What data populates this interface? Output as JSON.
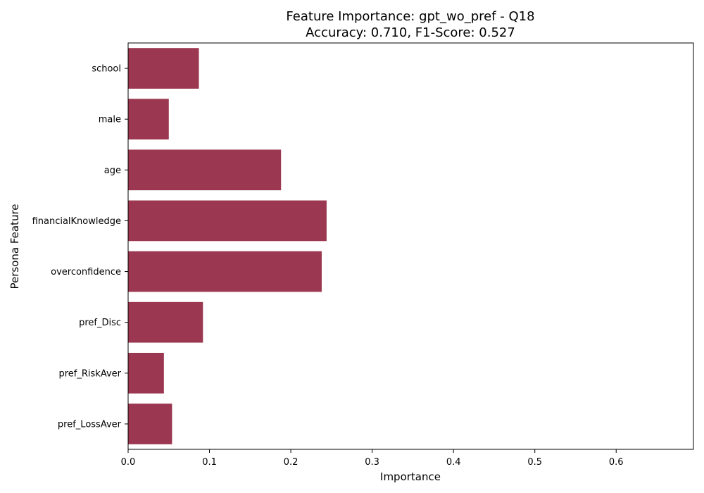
{
  "chart_data": {
    "type": "bar",
    "orientation": "horizontal",
    "title": "Feature Importance: gpt_wo_pref - Q18",
    "subtitle": "Accuracy: 0.710, F1-Score: 0.527",
    "xlabel": "Importance",
    "ylabel": "Persona Feature",
    "categories": [
      "school",
      "male",
      "age",
      "financialKnowledge",
      "overconfidence",
      "pref_Disc",
      "pref_RiskAver",
      "pref_LossAver"
    ],
    "values": [
      0.087,
      0.05,
      0.188,
      0.244,
      0.238,
      0.092,
      0.044,
      0.054
    ],
    "xlim": [
      0.0,
      0.695
    ],
    "xticks": [
      "0.0",
      "0.1",
      "0.2",
      "0.3",
      "0.4",
      "0.5",
      "0.6"
    ],
    "grid": false,
    "bar_color": "#9b3750"
  }
}
